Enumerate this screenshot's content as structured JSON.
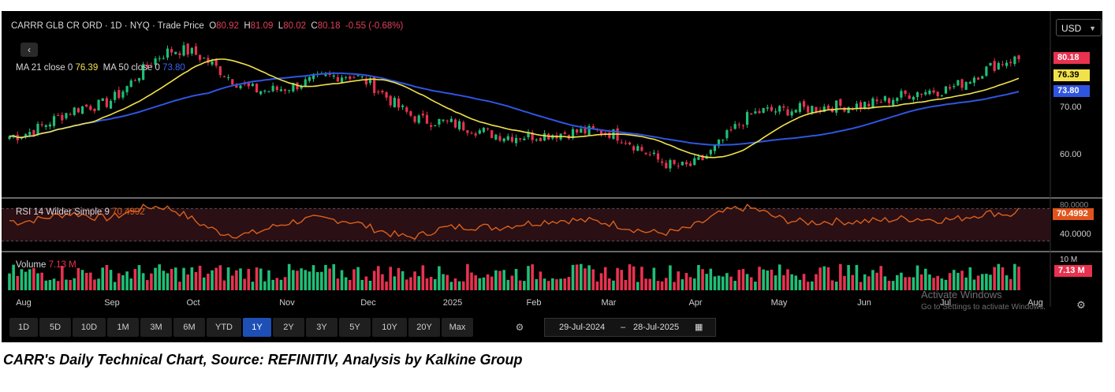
{
  "header": {
    "symbol": "CARRR GLB CR ORD",
    "interval": "1D",
    "exchange": "NYQ",
    "price_type": "Trade Price",
    "open_label": "O",
    "open": "80.92",
    "high_label": "H",
    "high": "81.09",
    "low_label": "L",
    "low": "80.02",
    "close_label": "C",
    "close": "80.18",
    "change": "-0.55 (-0.68%)"
  },
  "currency": "USD",
  "ma_legend": {
    "ma21_label": "MA 21 close 0",
    "ma21_value": "76.39",
    "ma50_label": "MA 50 close 0",
    "ma50_value": "73.80"
  },
  "rsi_legend": {
    "label": "RSI 14 Wilder Simple 9",
    "value": "70.4992"
  },
  "volume_legend": {
    "label": "Volume",
    "value": "7.13 M"
  },
  "price_axis": {
    "ticks": [
      "70.00",
      "60.00"
    ],
    "tag_close": "80.18",
    "tag_ma21": "76.39",
    "tag_ma50": "73.80"
  },
  "rsi_axis": {
    "top_tick": "80.0000",
    "tick": "40.0000",
    "tag": "70.4992"
  },
  "volume_axis": {
    "tick": "10 M",
    "tag": "7.13 M"
  },
  "x_axis": {
    "labels": [
      "Aug",
      "Sep",
      "Oct",
      "Nov",
      "Dec",
      "2025",
      "Feb",
      "Mar",
      "Apr",
      "May",
      "Jun",
      "Jul",
      "Aug"
    ]
  },
  "ranges": {
    "items": [
      "1D",
      "5D",
      "10D",
      "1M",
      "3M",
      "6M",
      "YTD",
      "1Y",
      "2Y",
      "3Y",
      "5Y",
      "10Y",
      "20Y",
      "Max"
    ],
    "active": "1Y"
  },
  "date_range": {
    "from": "29-Jul-2024",
    "separator": "–",
    "to": "28-Jul-2025"
  },
  "watermark": {
    "line1": "Activate Windows",
    "line2": "Go to Settings to activate Windows."
  },
  "caption": "CARR's Daily Technical Chart, Source: REFINITIV, Analysis by Kalkine Group",
  "colors": {
    "up": "#1fbf76",
    "down": "#e8324f",
    "ma21": "#f2e24a",
    "ma50": "#2f55e0",
    "rsi": "#d9601c",
    "background": "#000000"
  },
  "icons": {
    "back": "chevron-left-icon",
    "range": "gear-icon",
    "calendar": "calendar-icon",
    "settings": "settings-icon",
    "currency_dropdown": "chevron-down-icon"
  },
  "chart_data": {
    "type": "candlestick",
    "title": "CARRR GLB CR ORD - 1D - NYQ - Trade Price",
    "x_range": [
      "29-Jul-2024",
      "28-Jul-2025"
    ],
    "price_ylim": [
      53,
      85
    ],
    "price_anchors": [
      {
        "month": "Aug",
        "close": 65
      },
      {
        "month": "Sep",
        "close": 71
      },
      {
        "month": "Oct",
        "close": 82
      },
      {
        "month": "Nov",
        "close": 74
      },
      {
        "month": "Dec",
        "close": 77
      },
      {
        "month": "2025",
        "close": 68
      },
      {
        "month": "Feb",
        "close": 65
      },
      {
        "month": "Mar",
        "close": 66
      },
      {
        "month": "Apr",
        "close": 59
      },
      {
        "month": "May",
        "close": 70
      },
      {
        "month": "Jun",
        "close": 71
      },
      {
        "month": "Jul",
        "close": 74
      },
      {
        "month": "Aug",
        "close": 80.18
      }
    ],
    "ma21_last": 76.39,
    "ma50_last": 73.8,
    "rsi_last": 70.4992,
    "rsi_ylim": [
      20,
      80
    ],
    "volume_last_millions": 7.13,
    "volume_ylim_millions": [
      0,
      10
    ]
  }
}
